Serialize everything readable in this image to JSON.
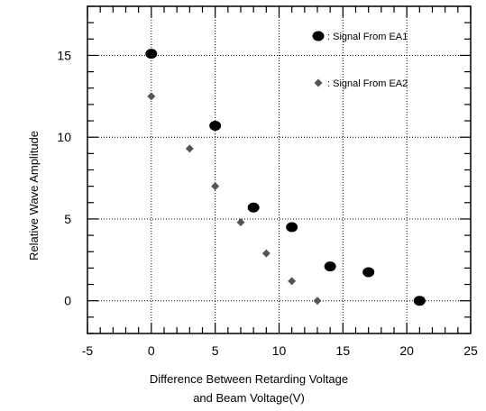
{
  "chart_data": {
    "type": "scatter",
    "xlabel_lines": [
      "Difference Between Retarding Voltage",
      "and Beam Voltage(V)"
    ],
    "ylabel": "Relative Wave Amplitude",
    "xlim": [
      -5,
      25
    ],
    "ylim": [
      -2,
      18
    ],
    "x_ticks": [
      -5,
      0,
      5,
      10,
      15,
      20,
      25
    ],
    "y_ticks": [
      0,
      5,
      10,
      15
    ],
    "grid": "dotted",
    "legend_placement": "top-right",
    "series": [
      {
        "name": ": Signal From EA1",
        "marker": "circle",
        "color": "#000000",
        "points": [
          {
            "x": 0,
            "y": 15.1
          },
          {
            "x": 5,
            "y": 10.7
          },
          {
            "x": 8,
            "y": 5.7
          },
          {
            "x": 11,
            "y": 4.5
          },
          {
            "x": 14,
            "y": 2.1
          },
          {
            "x": 17,
            "y": 1.75
          },
          {
            "x": 21,
            "y": 0.0
          }
        ]
      },
      {
        "name": ": Signal From EA2",
        "marker": "diamond",
        "color": "#555555",
        "points": [
          {
            "x": 0,
            "y": 12.5
          },
          {
            "x": 3,
            "y": 9.3
          },
          {
            "x": 5,
            "y": 7.0
          },
          {
            "x": 7,
            "y": 4.8
          },
          {
            "x": 9,
            "y": 2.9
          },
          {
            "x": 11,
            "y": 1.2
          },
          {
            "x": 13,
            "y": 0.0
          }
        ]
      }
    ]
  }
}
